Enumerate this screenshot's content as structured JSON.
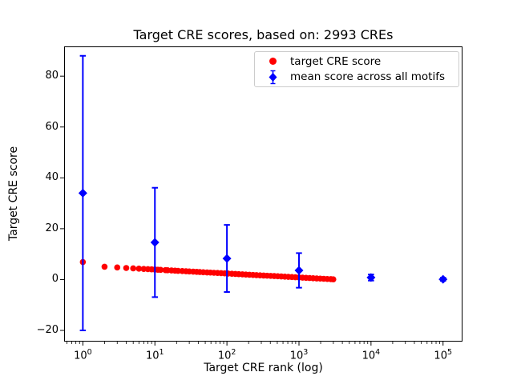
{
  "chart_data": {
    "type": "scatter",
    "title": "Target CRE scores, based on: 2993 CREs",
    "xlabel": "Target CRE rank (log)",
    "ylabel": "Target CRE score",
    "x_scale": "log",
    "x_range_log10": [
      -0.26,
      5.27
    ],
    "ylim": [
      -24.4,
      91.7
    ],
    "x_ticks": [
      1,
      10,
      100,
      1000,
      10000,
      100000
    ],
    "y_ticks": [
      -20,
      0,
      20,
      40,
      60,
      80
    ],
    "grid": false,
    "legend_position": "upper right",
    "series": [
      {
        "name": "target CRE score",
        "marker": "circle",
        "color": "#ff0000",
        "total_points": 2993,
        "sampled": true,
        "points": [
          [
            1,
            6.9
          ],
          [
            2,
            5.05
          ],
          [
            3,
            4.75
          ],
          [
            4,
            4.55
          ],
          [
            5,
            4.4
          ],
          [
            6,
            4.28
          ],
          [
            7,
            4.17
          ],
          [
            8,
            4.08
          ],
          [
            9,
            4.0
          ],
          [
            10,
            3.93
          ],
          [
            11,
            3.87
          ],
          [
            12,
            3.81
          ],
          [
            14,
            3.71
          ],
          [
            15,
            3.66
          ],
          [
            17,
            3.58
          ],
          [
            19,
            3.5
          ],
          [
            21,
            3.43
          ],
          [
            24,
            3.34
          ],
          [
            27,
            3.27
          ],
          [
            30,
            3.19
          ],
          [
            34,
            3.11
          ],
          [
            38,
            3.03
          ],
          [
            42,
            2.97
          ],
          [
            47,
            2.89
          ],
          [
            53,
            2.81
          ],
          [
            59,
            2.74
          ],
          [
            66,
            2.66
          ],
          [
            74,
            2.59
          ],
          [
            83,
            2.51
          ],
          [
            93,
            2.43
          ],
          [
            104,
            2.36
          ],
          [
            117,
            2.28
          ],
          [
            131,
            2.2
          ],
          [
            146,
            2.13
          ],
          [
            164,
            2.05
          ],
          [
            183,
            1.98
          ],
          [
            205,
            1.9
          ],
          [
            230,
            1.82
          ],
          [
            257,
            1.75
          ],
          [
            288,
            1.67
          ],
          [
            323,
            1.59
          ],
          [
            361,
            1.52
          ],
          [
            405,
            1.44
          ],
          [
            453,
            1.37
          ],
          [
            507,
            1.29
          ],
          [
            568,
            1.21
          ],
          [
            636,
            1.14
          ],
          [
            712,
            1.06
          ],
          [
            798,
            0.99
          ],
          [
            893,
            0.91
          ],
          [
            1000,
            0.83
          ],
          [
            1120,
            0.76
          ],
          [
            1254,
            0.68
          ],
          [
            1404,
            0.61
          ],
          [
            1572,
            0.53
          ],
          [
            1761,
            0.45
          ],
          [
            1972,
            0.38
          ],
          [
            2208,
            0.3
          ],
          [
            2473,
            0.22
          ],
          [
            2769,
            0.15
          ],
          [
            2993,
            0.1
          ]
        ]
      },
      {
        "name": "mean score across all motifs",
        "marker": "diamond",
        "color": "#0000ff",
        "error_bars": true,
        "points_x_mean_err": [
          [
            1,
            34,
            54
          ],
          [
            10,
            14.6,
            21.5
          ],
          [
            100,
            8.3,
            13.2
          ],
          [
            1000,
            3.6,
            6.8
          ],
          [
            10000,
            0.8,
            1.2
          ],
          [
            100000,
            0.1,
            0.6
          ]
        ]
      }
    ]
  }
}
